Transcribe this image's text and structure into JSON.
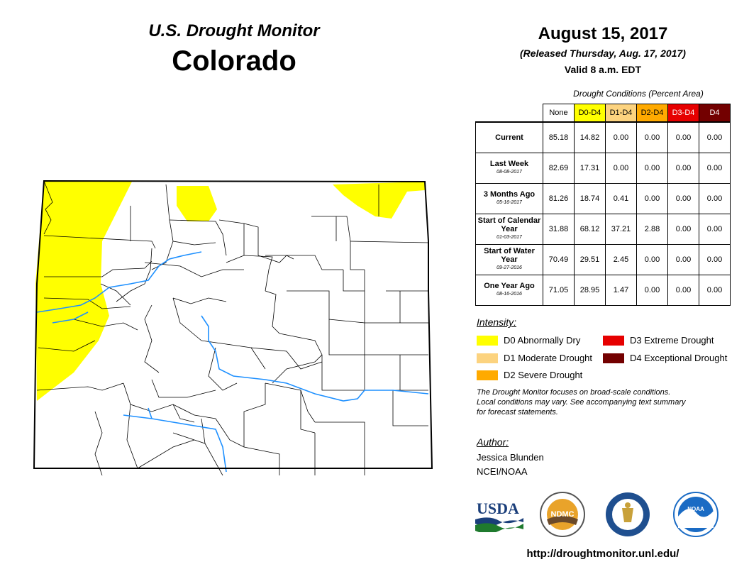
{
  "header": {
    "title": "U.S. Drought Monitor",
    "state": "Colorado"
  },
  "date": {
    "title": "August 15, 2017",
    "released": "(Released Thursday, Aug. 17, 2017)",
    "valid": "Valid 8 a.m. EDT"
  },
  "table": {
    "caption": "Drought Conditions (Percent Area)",
    "columns": [
      "None",
      "D0-D4",
      "D1-D4",
      "D2-D4",
      "D3-D4",
      "D4"
    ],
    "column_colors": [
      "#ffffff",
      "#ffff00",
      "#fcd37f",
      "#ffaa00",
      "#e60000",
      "#730000"
    ],
    "rows": [
      {
        "label": "Current",
        "date": "",
        "values": [
          "85.18",
          "14.82",
          "0.00",
          "0.00",
          "0.00",
          "0.00"
        ]
      },
      {
        "label": "Last Week",
        "date": "08-08-2017",
        "values": [
          "82.69",
          "17.31",
          "0.00",
          "0.00",
          "0.00",
          "0.00"
        ]
      },
      {
        "label": "3 Months Ago",
        "date": "05-16-2017",
        "values": [
          "81.26",
          "18.74",
          "0.41",
          "0.00",
          "0.00",
          "0.00"
        ]
      },
      {
        "label": "Start of Calendar Year",
        "date": "01-03-2017",
        "values": [
          "31.88",
          "68.12",
          "37.21",
          "2.88",
          "0.00",
          "0.00"
        ]
      },
      {
        "label": "Start of Water Year",
        "date": "09-27-2016",
        "values": [
          "70.49",
          "29.51",
          "2.45",
          "0.00",
          "0.00",
          "0.00"
        ]
      },
      {
        "label": "One Year Ago",
        "date": "08-16-2016",
        "values": [
          "71.05",
          "28.95",
          "1.47",
          "0.00",
          "0.00",
          "0.00"
        ]
      }
    ]
  },
  "legend": {
    "title": "Intensity:",
    "items": [
      {
        "label": "D0 Abnormally Dry",
        "color": "#ffff00"
      },
      {
        "label": "D1 Moderate Drought",
        "color": "#fcd37f"
      },
      {
        "label": "D2 Severe Drought",
        "color": "#ffaa00"
      },
      {
        "label": "D3 Extreme Drought",
        "color": "#e60000"
      },
      {
        "label": "D4 Exceptional Drought",
        "color": "#730000"
      }
    ]
  },
  "note": {
    "line1": "The Drought Monitor focuses on broad-scale conditions.",
    "line2": "Local conditions may vary. See accompanying text summary",
    "line3": "for forecast statements."
  },
  "author": {
    "label": "Author:",
    "name": "Jessica Blunden",
    "org": "NCEI/NOAA"
  },
  "logos": {
    "usda": "USDA",
    "ndmc": "NDMC",
    "noaa": "NOAA"
  },
  "url": "http://droughtmonitor.unl.edu/",
  "map": {
    "d0_color": "#ffff00",
    "river_color": "#1e90ff"
  }
}
